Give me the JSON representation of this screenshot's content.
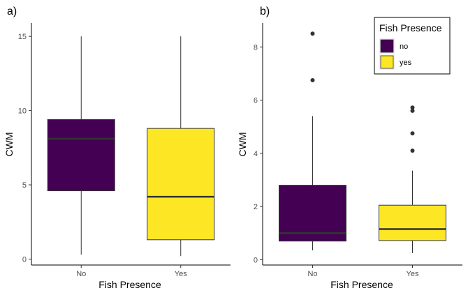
{
  "chart_data": [
    {
      "type": "boxplot",
      "panel_label": "a)",
      "xlabel": "Fish Presence",
      "ylabel": "CWM",
      "categories": [
        "No",
        "Yes"
      ],
      "ylim": [
        -0.4,
        15.9
      ],
      "yticks": [
        0,
        5,
        10,
        15
      ],
      "boxes": [
        {
          "category": "No",
          "min": 0.3,
          "q1": 4.6,
          "median": 8.1,
          "q3": 9.4,
          "max": 15.0,
          "outliers": [],
          "color": "#440154"
        },
        {
          "category": "Yes",
          "min": 0.2,
          "q1": 1.3,
          "median": 4.2,
          "q3": 8.8,
          "max": 15.0,
          "outliers": [],
          "color": "#FDE725"
        }
      ],
      "grid": false,
      "legend": null
    },
    {
      "type": "boxplot",
      "panel_label": "b)",
      "xlabel": "Fish Presence",
      "ylabel": "CWM",
      "categories": [
        "No",
        "Yes"
      ],
      "ylim": [
        -0.2,
        8.9
      ],
      "yticks": [
        0,
        2,
        4,
        6,
        8
      ],
      "boxes": [
        {
          "category": "No",
          "min": 0.35,
          "q1": 0.7,
          "median": 1.0,
          "q3": 2.8,
          "max": 5.4,
          "outliers": [
            6.75,
            8.5
          ],
          "color": "#440154"
        },
        {
          "category": "Yes",
          "min": 0.25,
          "q1": 0.72,
          "median": 1.15,
          "q3": 2.05,
          "max": 3.35,
          "outliers": [
            4.1,
            4.75,
            5.6,
            5.72
          ],
          "color": "#FDE725"
        }
      ],
      "grid": false,
      "legend": {
        "title": "Fish Presence",
        "position": "top-right",
        "entries": [
          {
            "label": "no",
            "color": "#440154"
          },
          {
            "label": "yes",
            "color": "#FDE725"
          }
        ]
      }
    }
  ]
}
